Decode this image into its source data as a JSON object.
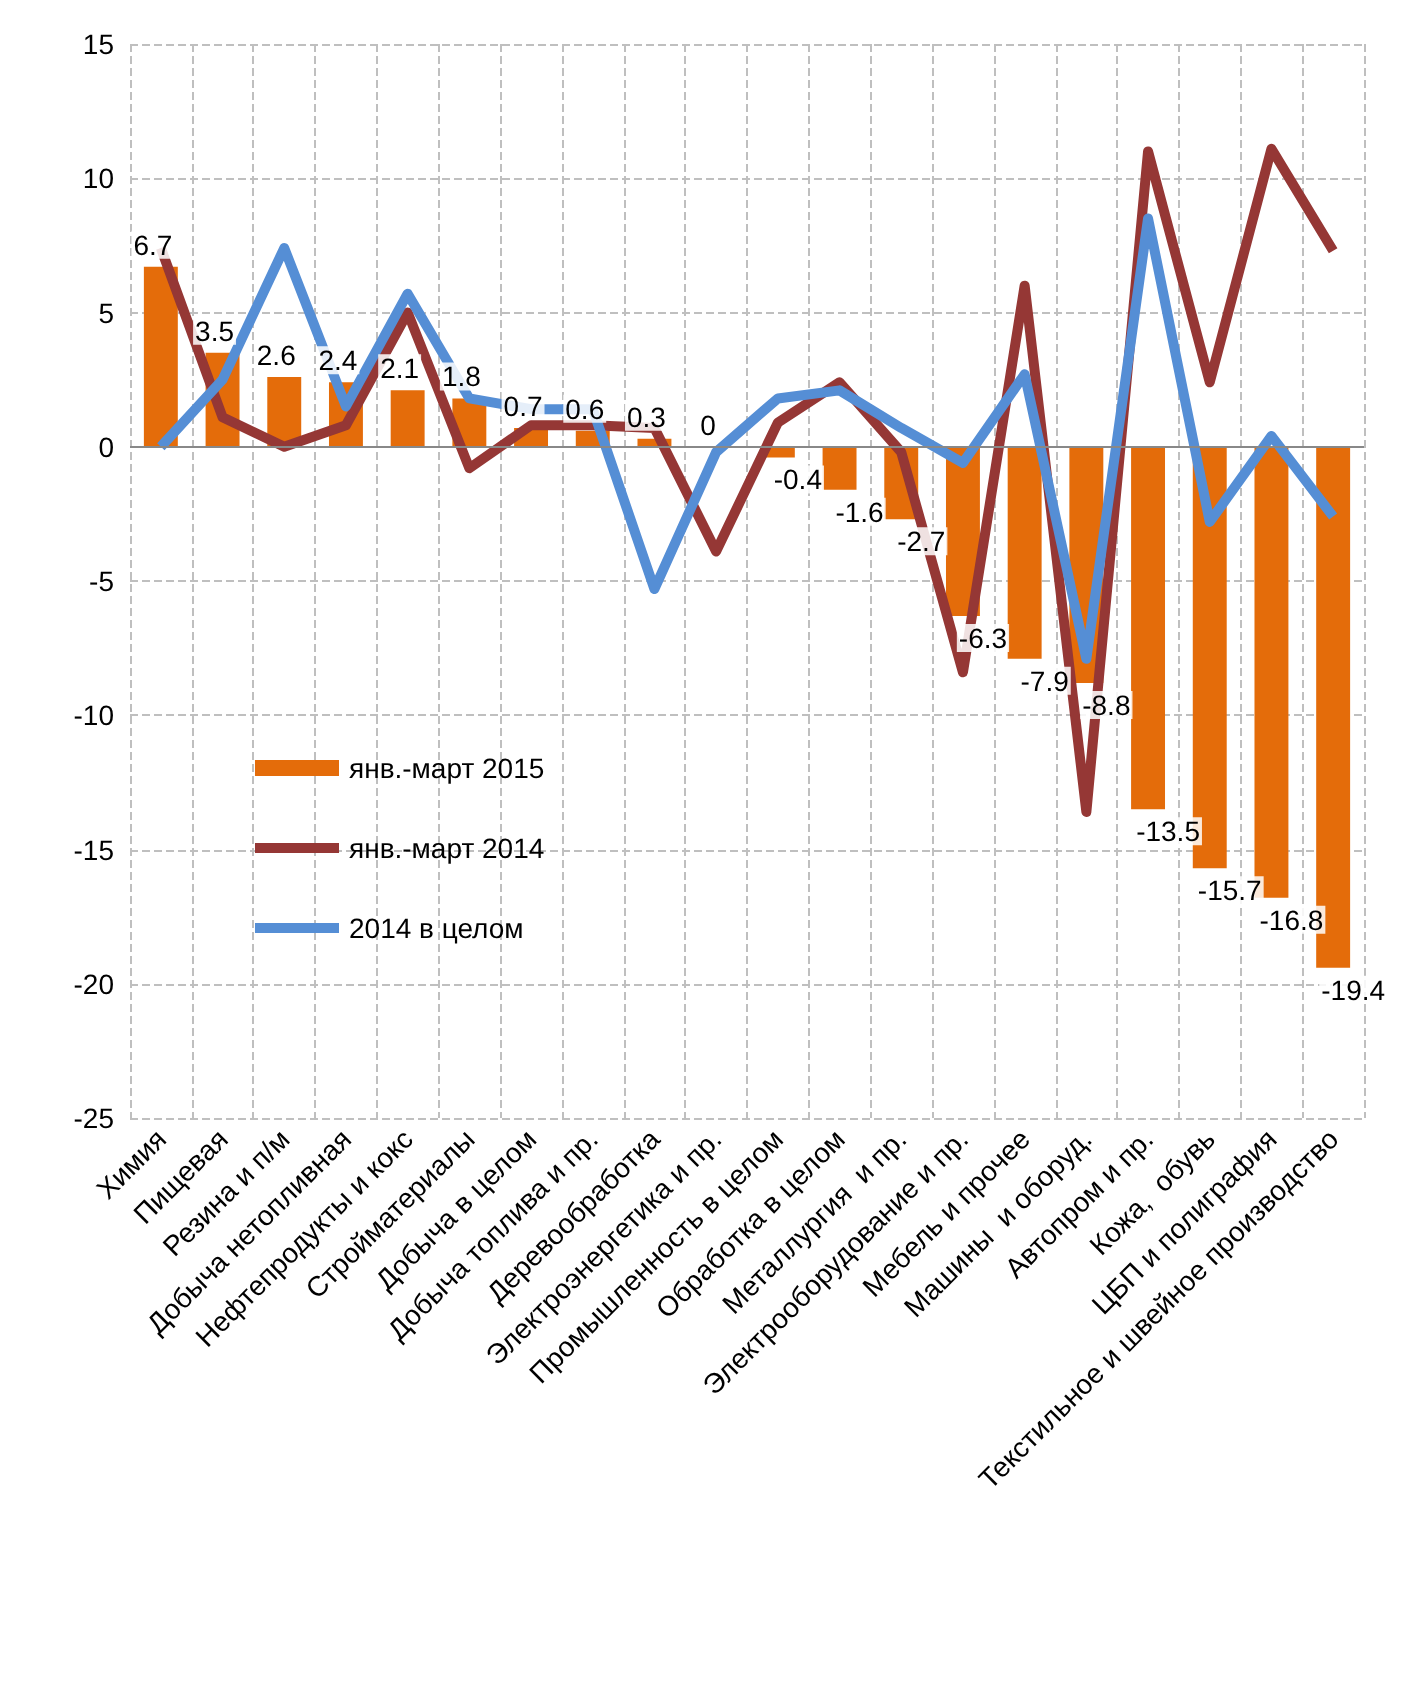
{
  "chart_data": {
    "type": "bar",
    "categories": [
      "Химия",
      "Пищевая",
      "Резина и п/м",
      "Добыча нетопливная",
      "Нефтепродукты и кокс",
      "Стройматериалы",
      "Добыча в целом",
      "Добыча топлива и пр.",
      "Деревообработка",
      "Электроэнергетика и пр.",
      "Промышленность в целом",
      "Обработка в целом",
      "Металлургия  и пр.",
      "Электрооборудование и пр.",
      "Мебель и прочее",
      "Машины  и оборуд.",
      "Автопром и пр.",
      "Кожа,  обувь",
      "ЦБП и полиграфия",
      "Текстильное и швейное производство"
    ],
    "series": [
      {
        "name": "янв.-март 2015",
        "color": "#e46c0a",
        "data_labels": true,
        "values": [
          6.7,
          3.5,
          2.6,
          2.4,
          2.1,
          1.8,
          0.7,
          0.6,
          0.3,
          0,
          -0.4,
          -1.6,
          -2.7,
          -6.3,
          -7.9,
          -8.8,
          -13.5,
          -15.7,
          -16.8,
          -19.4
        ]
      },
      {
        "name": "янв.-март 2014",
        "type": "line",
        "color": "#953735",
        "values": [
          7.4,
          1.1,
          0.0,
          0.8,
          5.0,
          -0.8,
          0.8,
          0.8,
          0.7,
          -3.9,
          0.9,
          2.4,
          -0.2,
          -8.4,
          6.0,
          -13.6,
          11.0,
          2.4,
          11.1,
          7.3
        ]
      },
      {
        "name": "2014 в целом",
        "type": "line",
        "color": "#558ed5",
        "values": [
          0.0,
          2.5,
          7.4,
          1.5,
          5.7,
          1.8,
          1.4,
          1.4,
          -5.3,
          -0.2,
          1.8,
          2.1,
          0.7,
          -0.6,
          2.7,
          -7.9,
          8.5,
          -2.8,
          0.4,
          -2.6
        ]
      }
    ],
    "ylim": [
      -25,
      15
    ],
    "yticks": [
      -25,
      -20,
      -15,
      -10,
      -5,
      0,
      5,
      10,
      15
    ],
    "grid": true,
    "legend": "left",
    "marker": "none",
    "line_style": "solid"
  }
}
